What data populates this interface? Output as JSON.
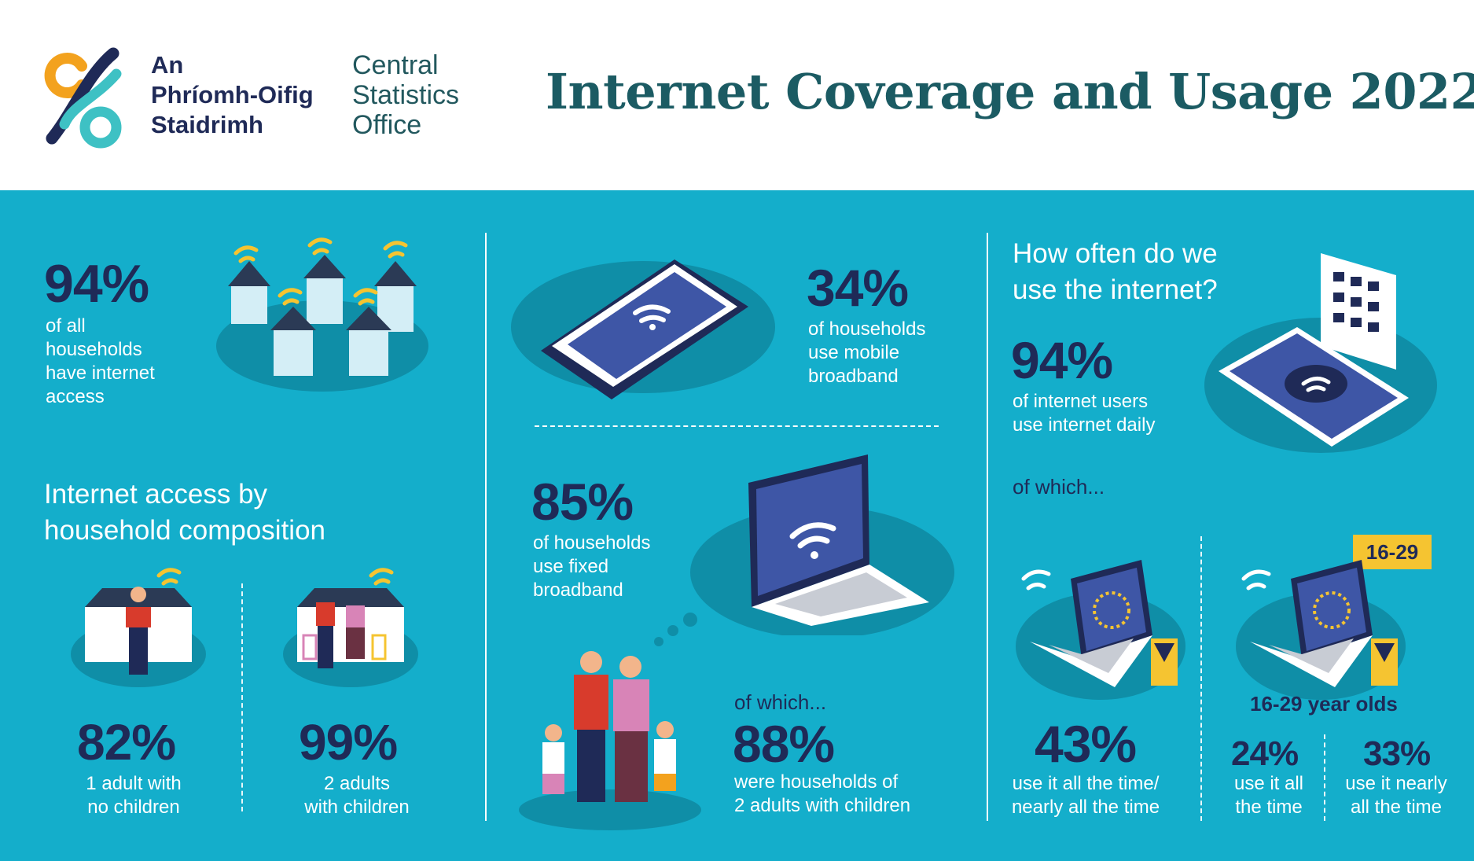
{
  "header": {
    "logo_irish": [
      "An",
      "Phríomh-Oifig",
      "Staidrimh"
    ],
    "logo_english": [
      "Central",
      "Statistics",
      "Office"
    ],
    "title": "Internet Coverage and Usage 2022"
  },
  "colors": {
    "panel_bg": "#14aecb",
    "navy": "#1f2a57",
    "title_teal": "#1b5b63",
    "accent_yellow": "#f5c431",
    "accent_orange": "#f3a21e",
    "logo_teal": "#3ec1c4"
  },
  "households": {
    "percent": "94%",
    "lines": [
      "of all",
      "households",
      "have internet",
      "access"
    ],
    "icon": "houses-with-wifi-illustration"
  },
  "composition": {
    "heading": [
      "Internet access by",
      "household composition"
    ],
    "single": {
      "percent": "82%",
      "lines": [
        "1 adult with",
        "no children"
      ],
      "icon": "single-adult-house-illustration"
    },
    "family": {
      "percent": "99%",
      "lines": [
        "2 adults",
        "with children"
      ],
      "icon": "family-house-illustration"
    }
  },
  "mobile": {
    "percent": "34%",
    "lines": [
      "of households",
      "use mobile",
      "broadband"
    ],
    "icon": "smartphone-wifi-illustration"
  },
  "fixed": {
    "percent": "85%",
    "lines": [
      "of households",
      "use fixed",
      "broadband"
    ],
    "icon": "laptop-wifi-illustration",
    "of_which": "of which...",
    "family_percent": "88%",
    "family_lines": [
      "were households of",
      "2 adults with children"
    ],
    "family_icon": "family-illustration"
  },
  "usage": {
    "heading": [
      "How often do we",
      "use the internet?"
    ],
    "daily_percent": "94%",
    "daily_lines": [
      "of internet users",
      "use internet daily"
    ],
    "of_which": "of which...",
    "icon": "phone-calendar-illustration",
    "all_time": {
      "percent": "43%",
      "lines": [
        "use it all the time/",
        "nearly all the time"
      ],
      "icon": "laptop-clock-hourglass-illustration"
    },
    "young": {
      "badge": "16-29",
      "label": "16-29 year olds",
      "icon": "laptop-clock-hourglass-illustration",
      "all_time": {
        "percent": "24%",
        "lines": [
          "use it all",
          "the time"
        ]
      },
      "nearly": {
        "percent": "33%",
        "lines": [
          "use it nearly",
          "all the time"
        ]
      }
    }
  }
}
